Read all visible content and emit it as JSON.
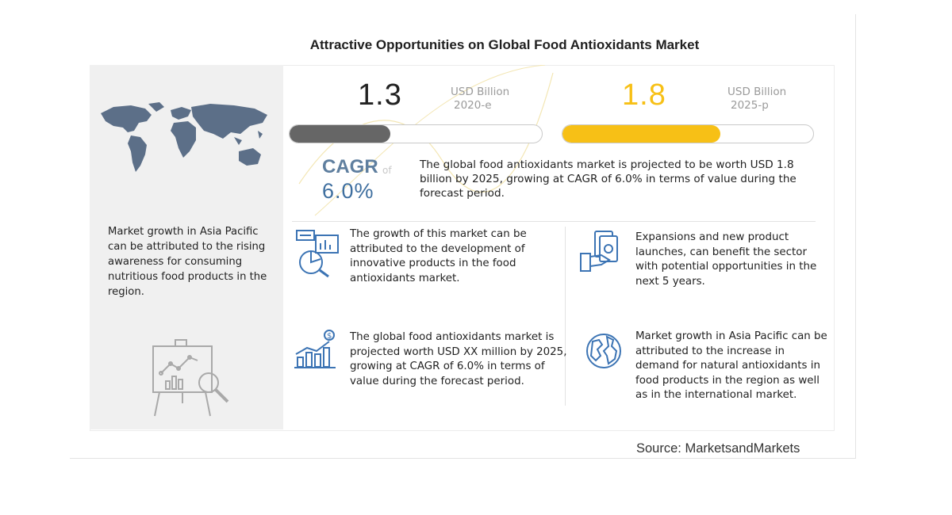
{
  "title": "Attractive Opportunities on Global Food Antioxidants Market",
  "left_panel": {
    "text": "Market growth in Asia Pacific can be attributed to the rising awareness for consuming nutritious food products in the region."
  },
  "metrics": [
    {
      "value": "1.3",
      "unit": "USD Billion",
      "period": "2020-e",
      "bar_fill_fraction": 0.4,
      "color": "#666666"
    },
    {
      "value": "1.8",
      "unit": "USD Billion",
      "period": "2025-p",
      "bar_fill_fraction": 0.63,
      "color": "#f7c016"
    }
  ],
  "cagr": {
    "label": "CAGR",
    "of": "of",
    "value": "6.0%",
    "text": "The global food antioxidants market is projected to be worth USD 1.8 billion by 2025, growing at CAGR of 6.0% in terms of value during the forecast period."
  },
  "facts": [
    {
      "icon": "report-chart-icon",
      "text": "The growth of this market can be attributed to the development of innovative products in the food antioxidants market."
    },
    {
      "icon": "hand-money-icon",
      "text": "Expansions and new product launches, can benefit the sector with potential opportunities in the next 5 years."
    },
    {
      "icon": "growth-bars-dollar-icon",
      "text": "The global food antioxidants market is projected worth USD XX million by 2025, growing at CAGR of 6.0% in terms of value during the forecast period."
    },
    {
      "icon": "globe-icon",
      "text": "Market growth in Asia Pacific can be attributed to the increase in demand for natural antioxidants in food products in the region as well as in the international market."
    }
  ],
  "source": "Source: MarketsandMarkets",
  "colors": {
    "accent_yellow": "#f7c016",
    "accent_blue": "#4a76a8",
    "icon_blue": "#3c74b4",
    "grey_bar": "#666666"
  }
}
